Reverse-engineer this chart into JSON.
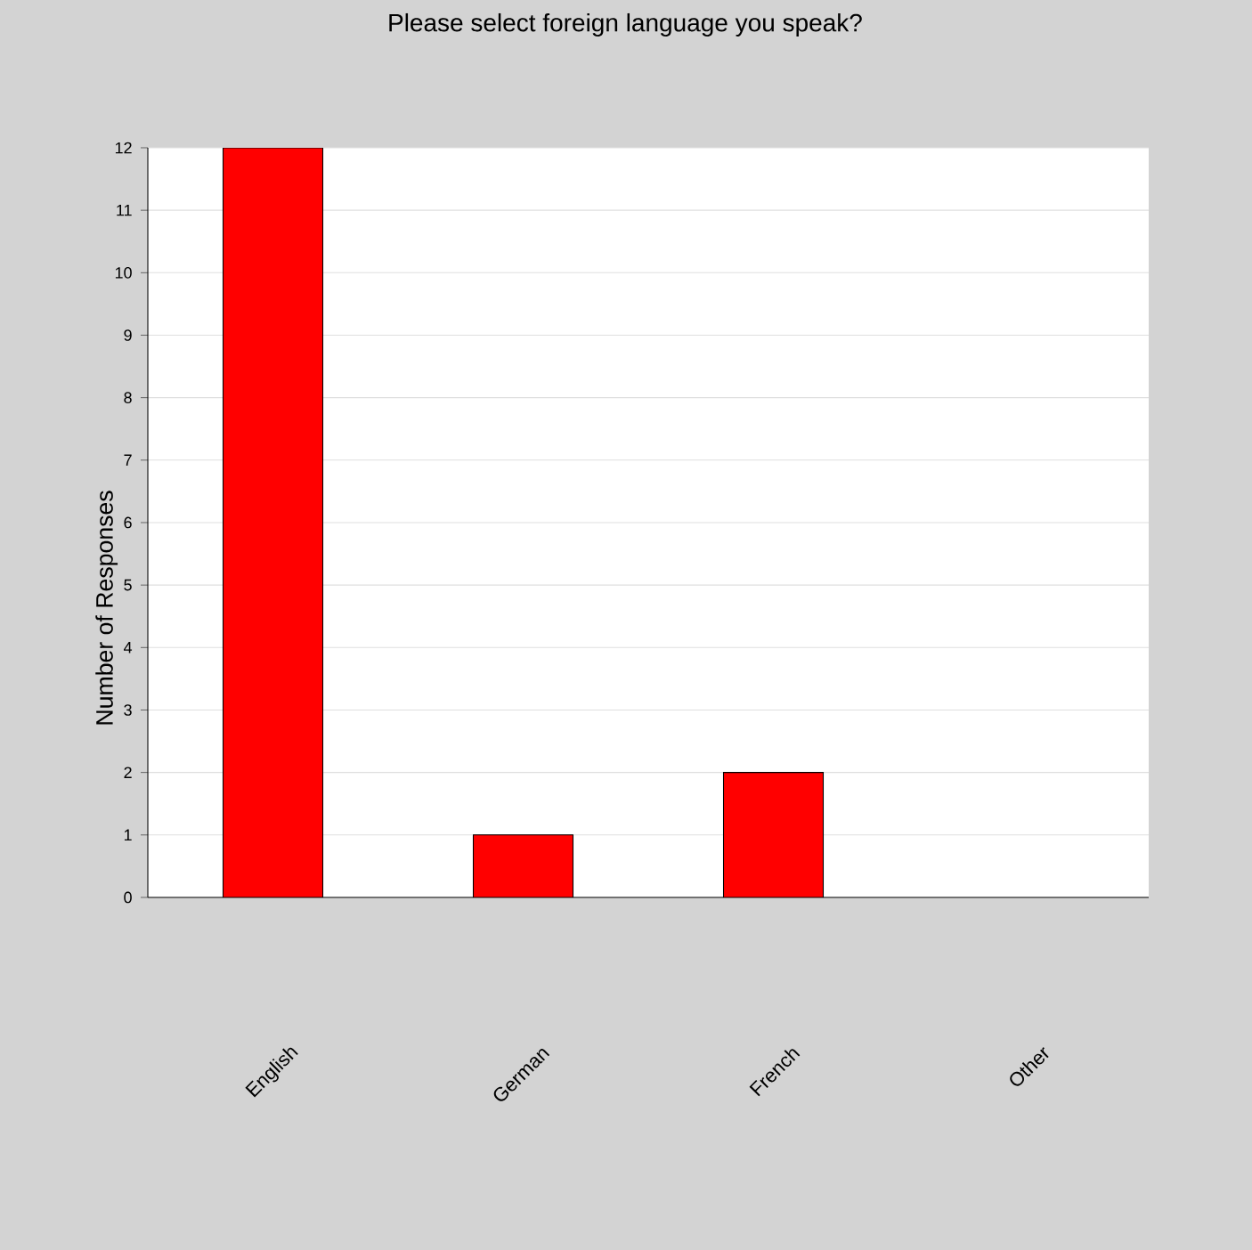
{
  "chart_data": {
    "type": "bar",
    "title": "Please select foreign language you speak?",
    "ylabel": "Number of Responses",
    "categories": [
      "English",
      "German",
      "French",
      "Other"
    ],
    "values": [
      12,
      1,
      2,
      0
    ],
    "color": "#ff0000",
    "ylim": [
      0,
      12
    ],
    "yticks": [
      0,
      1,
      2,
      3,
      4,
      5,
      6,
      7,
      8,
      9,
      10,
      11,
      12
    ],
    "grid": "y"
  }
}
